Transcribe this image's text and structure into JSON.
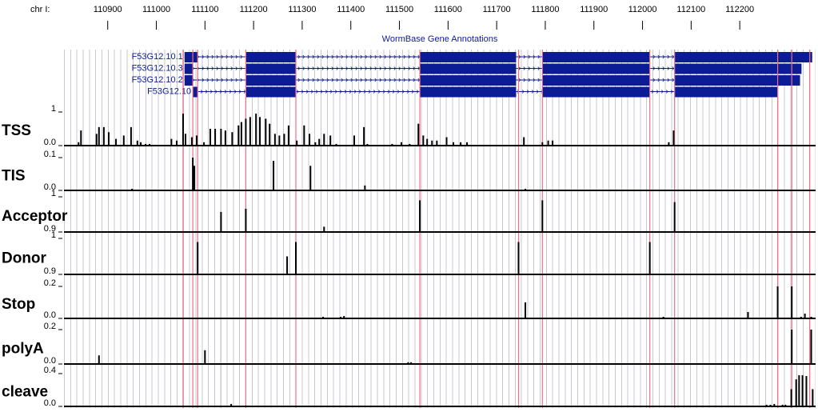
{
  "chart_data": [
    {
      "type": "ruler",
      "label": "chr I:",
      "xlim": [
        110810,
        112356
      ],
      "xticks": [
        110900,
        111000,
        111100,
        111200,
        111300,
        111400,
        111500,
        111600,
        111700,
        111800,
        111900,
        112000,
        112100,
        112200
      ]
    },
    {
      "type": "gene",
      "title": "WormBase Gene Annotations",
      "xlim": [
        110810,
        112356
      ],
      "color": "#0c1c94",
      "transcripts": [
        {
          "name": "F53G12.10.1",
          "exons": [
            [
              111058,
              111085
            ],
            [
              111184,
              111287
            ],
            [
              111542,
              111740
            ],
            [
              111794,
              112015
            ],
            [
              112066,
              112349
            ]
          ]
        },
        {
          "name": "F53G12.10.3",
          "exons": [
            [
              111058,
              111075
            ],
            [
              111184,
              111287
            ],
            [
              111542,
              111740
            ],
            [
              111794,
              112015
            ],
            [
              112066,
              112327
            ]
          ]
        },
        {
          "name": "F53G12.10.2",
          "exons": [
            [
              111058,
              111075
            ],
            [
              111184,
              111287
            ],
            [
              111542,
              111740
            ],
            [
              111794,
              112015
            ],
            [
              112066,
              112324
            ]
          ]
        },
        {
          "name": "F53G12.10",
          "exons": [
            [
              111075,
              111085
            ],
            [
              111184,
              111287
            ],
            [
              111542,
              111740
            ],
            [
              111794,
              112015
            ],
            [
              112066,
              112278
            ]
          ]
        }
      ]
    },
    {
      "type": "highlight",
      "xlim": [
        110810,
        112356
      ],
      "color": "#ef6f86",
      "x": [
        111055,
        111075,
        111085,
        111184,
        111287,
        111542,
        111745,
        111794,
        112015,
        112066,
        112278,
        112307,
        112344
      ]
    },
    {
      "type": "bar",
      "title": "TSS",
      "xlim": [
        110810,
        112356
      ],
      "ylim": [
        0,
        1
      ],
      "yticks": [
        1,
        {
          "value": 0,
          "label": "0.0"
        }
      ],
      "color": "#000000",
      "x": [
        110840,
        110845,
        110877,
        110882,
        110892,
        110902,
        110917,
        110933,
        110948,
        110961,
        110968,
        110978,
        110986,
        111031,
        111042,
        111055,
        111060,
        111073,
        111083,
        111098,
        111111,
        111121,
        111133,
        111142,
        111156,
        111169,
        111175,
        111184,
        111193,
        111205,
        111213,
        111225,
        111233,
        111244,
        111253,
        111263,
        111272,
        111289,
        111304,
        111315,
        111327,
        111335,
        111345,
        111358,
        111370,
        111407,
        111427,
        111434,
        111485,
        111504,
        111521,
        111539,
        111549,
        111557,
        111567,
        111577,
        111597,
        111611,
        111626,
        111639,
        111756,
        111794,
        111806,
        111815,
        112054,
        112064
      ],
      "values": [
        0.1,
        0.45,
        0.35,
        0.55,
        0.55,
        0.4,
        0.2,
        0.3,
        0.55,
        0.15,
        0.1,
        0.05,
        0.05,
        0.2,
        0.15,
        0.95,
        0.35,
        0.25,
        0.3,
        0.1,
        0.5,
        0.5,
        0.5,
        0.45,
        0.4,
        0.6,
        0.7,
        0.8,
        0.85,
        0.95,
        0.85,
        0.8,
        0.65,
        0.35,
        0.3,
        0.35,
        0.6,
        0.15,
        0.6,
        0.35,
        0.1,
        0.2,
        0.35,
        0.3,
        0.05,
        0.3,
        0.55,
        0.05,
        0.05,
        0.1,
        0.05,
        0.65,
        0.3,
        0.2,
        0.15,
        0.15,
        0.25,
        0.1,
        0.1,
        0.1,
        0.25,
        0.1,
        0.15,
        0.15,
        0.1,
        0.45
      ]
    },
    {
      "type": "bar",
      "title": "TIS",
      "xlim": [
        110810,
        112356
      ],
      "ylim": [
        0,
        0.1
      ],
      "yticks": [
        0.1,
        {
          "value": 0,
          "label": "0.0"
        }
      ],
      "color": "#000000",
      "x": [
        110950,
        111075,
        111078,
        111241,
        111317,
        111429,
        111759
      ],
      "values": [
        0.005,
        0.1,
        0.075,
        0.09,
        0.075,
        0.015,
        0.005
      ]
    },
    {
      "type": "bar",
      "title": "Acceptor",
      "xlim": [
        110810,
        112356
      ],
      "ylim": [
        0.9,
        1
      ],
      "yticks": [
        1,
        0.9
      ],
      "color": "#000000",
      "x": [
        111133,
        111184,
        111345,
        111542,
        111794,
        112066
      ],
      "values": [
        0.957,
        0.966,
        0.915,
        0.99,
        0.99,
        0.985
      ]
    },
    {
      "type": "bar",
      "title": "Donor",
      "xlim": [
        110810,
        112356
      ],
      "ylim": [
        0.9,
        1
      ],
      "yticks": [
        1,
        0.9
      ],
      "color": "#000000",
      "x": [
        111085,
        111269,
        111287,
        111745,
        112015
      ],
      "values": [
        0.99,
        0.95,
        0.99,
        0.99,
        0.99
      ]
    },
    {
      "type": "bar",
      "title": "Stop",
      "xlim": [
        110810,
        112356
      ],
      "ylim": [
        0,
        0.2
      ],
      "yticks": [
        0.2,
        {
          "value": 0,
          "label": "0.0"
        }
      ],
      "color": "#000000",
      "x": [
        111343,
        111379,
        111386,
        111759,
        112043,
        112217,
        112278,
        112307,
        112326,
        112334,
        112347
      ],
      "values": [
        0.01,
        0.01,
        0.015,
        0.1,
        0.01,
        0.04,
        0.2,
        0.2,
        0.01,
        0.03,
        0.01
      ]
    },
    {
      "type": "bar",
      "title": "polyA",
      "xlim": [
        110810,
        112356
      ],
      "ylim": [
        0,
        0.2
      ],
      "yticks": [
        0.2,
        {
          "value": 0,
          "label": "0.0"
        }
      ],
      "color": "#000000",
      "x": [
        110882,
        111100,
        111518,
        111524,
        112307,
        112347
      ],
      "values": [
        0.05,
        0.08,
        0.01,
        0.01,
        0.2,
        0.2
      ]
    },
    {
      "type": "bar",
      "title": "cleave",
      "xlim": [
        110810,
        112356
      ],
      "ylim": [
        0,
        0.4
      ],
      "yticks": [
        0.4,
        {
          "value": 0,
          "label": "0.0"
        }
      ],
      "color": "#000000",
      "x": [
        110909,
        111154,
        112028,
        112038,
        112182,
        112255,
        112263,
        112271,
        112288,
        112294,
        112306,
        112316,
        112322,
        112329,
        112337,
        112350
      ],
      "values": [
        0.01,
        0.03,
        0.01,
        0.01,
        0.01,
        0.02,
        0.02,
        0.03,
        0.02,
        0.02,
        0.21,
        0.33,
        0.38,
        0.38,
        0.37,
        0.21
      ]
    }
  ]
}
